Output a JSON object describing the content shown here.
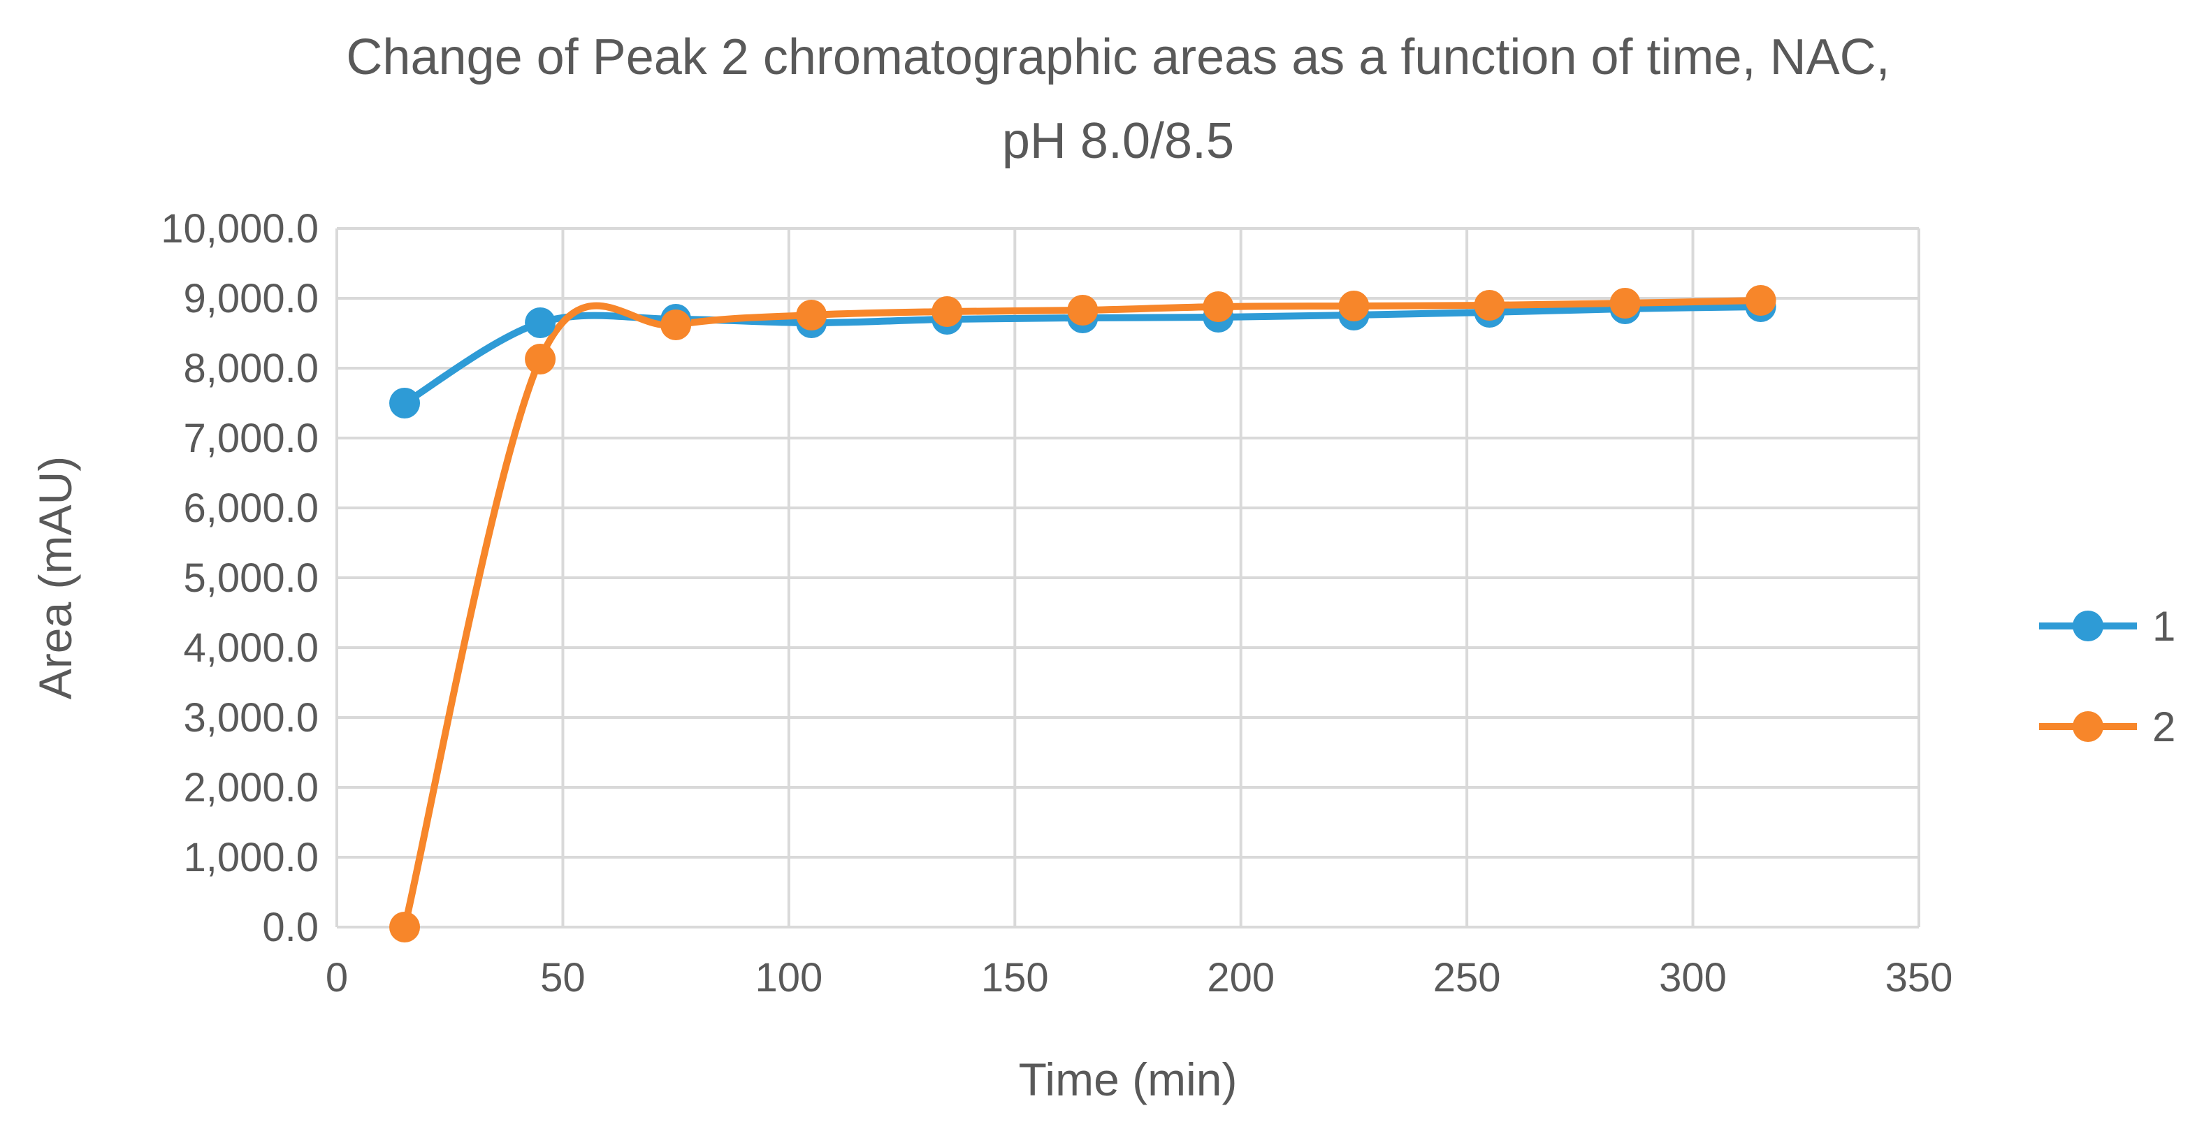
{
  "chart_data": {
    "type": "line",
    "title_lines": [
      "Change of Peak 2 chromatographic areas as a function of time, NAC,",
      "pH 8.0/8.5"
    ],
    "xlabel": "Time (min)",
    "ylabel": "Area (mAU)",
    "xlim": [
      0,
      350
    ],
    "ylim": [
      0,
      10000
    ],
    "x_ticks": [
      0,
      50,
      100,
      150,
      200,
      250,
      300,
      350
    ],
    "x_tick_labels": [
      "0",
      "50",
      "100",
      "150",
      "200",
      "250",
      "300",
      "350"
    ],
    "y_ticks": [
      0,
      1000,
      2000,
      3000,
      4000,
      5000,
      6000,
      7000,
      8000,
      9000,
      10000
    ],
    "y_tick_labels": [
      "0.0",
      "1,000.0",
      "2,000.0",
      "3,000.0",
      "4,000.0",
      "5,000.0",
      "6,000.0",
      "7,000.0",
      "8,000.0",
      "9,000.0",
      "10,000.0"
    ],
    "grid": true,
    "legend_position": "right",
    "smoothed": true,
    "series": [
      {
        "name": "1",
        "color": "#2e9bd6",
        "x": [
          15,
          45,
          75,
          105,
          135,
          165,
          195,
          225,
          255,
          285,
          315
        ],
        "y": [
          7500,
          8650,
          8700,
          8650,
          8700,
          8720,
          8730,
          8760,
          8800,
          8850,
          8880
        ]
      },
      {
        "name": "2",
        "color": "#f7862a",
        "x": [
          15,
          45,
          75,
          105,
          135,
          165,
          195,
          225,
          255,
          285,
          315
        ],
        "y": [
          0,
          8130,
          8620,
          8760,
          8810,
          8830,
          8880,
          8890,
          8900,
          8930,
          8970
        ]
      }
    ]
  }
}
